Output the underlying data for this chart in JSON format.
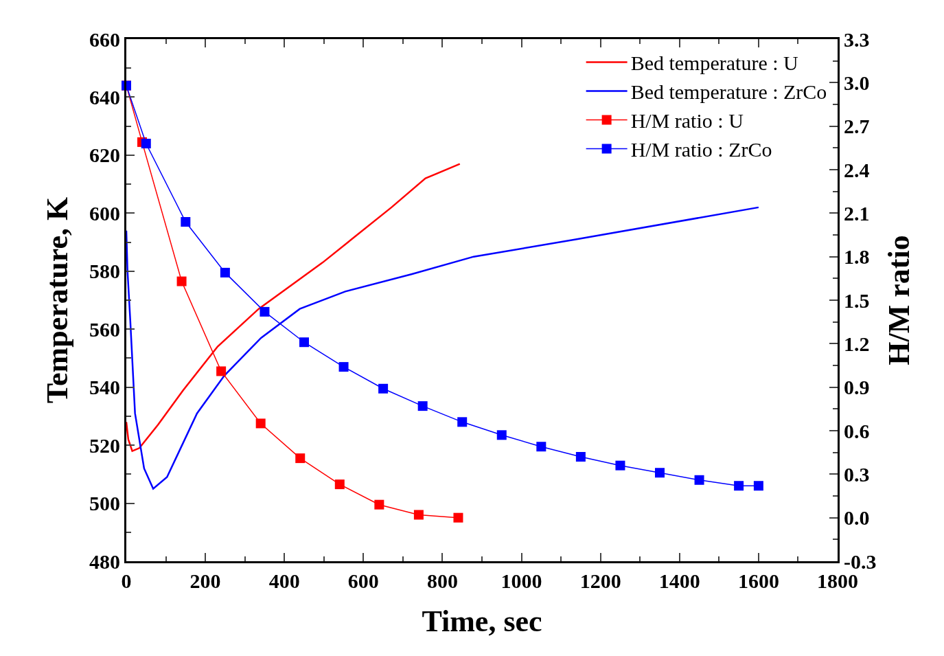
{
  "chart_data": {
    "type": "line",
    "xlabel": "Time, sec",
    "ylabel": "Temperature, K",
    "y2label": "H/M ratio",
    "xlim": [
      0,
      1800
    ],
    "xticks": [
      0,
      200,
      400,
      600,
      800,
      1000,
      1200,
      1400,
      1600,
      1800
    ],
    "ylim": [
      480,
      660
    ],
    "yticks": [
      480,
      500,
      520,
      540,
      560,
      580,
      600,
      620,
      640,
      660
    ],
    "y2lim": [
      -0.3,
      3.3
    ],
    "y2ticks": [
      -0.3,
      {
        "value": 0,
        "label": "0.0"
      },
      0.3,
      0.6,
      0.9,
      1.2,
      1.5,
      1.8,
      2.1,
      2.4,
      2.7,
      {
        "value": 3,
        "label": "3.0"
      },
      3.3
    ],
    "legend": "top right",
    "grid": false,
    "line_style": "solid",
    "series": [
      {
        "name": "Bed temperature : U",
        "color": "#ff0000",
        "marker": "none",
        "x": [
          0,
          5,
          15,
          33,
          80,
          144,
          231,
          335,
          497,
          671,
          757,
          844
        ],
        "values": [
          528,
          522,
          518,
          519,
          527,
          539,
          554,
          567,
          583,
          602,
          612,
          617
        ]
      },
      {
        "name": "Bed temperature : ZrCo",
        "color": "#0000ff",
        "marker": "none",
        "x": [
          0,
          3,
          10,
          22,
          45,
          68,
          103,
          179,
          248,
          341,
          439,
          554,
          723,
          879,
          1140,
          1600
        ],
        "values": [
          594,
          580,
          563,
          531,
          512,
          505,
          509,
          531,
          544,
          557,
          567,
          573,
          579,
          585,
          591,
          602
        ]
      },
      {
        "name": "H/M ratio : U",
        "color": "#ff0000",
        "marker": "square",
        "axis": "y2",
        "x": [
          0,
          40,
          140,
          240,
          340,
          440,
          540,
          640,
          740,
          840
        ],
        "values": [
          2.98,
          2.59,
          1.63,
          1.01,
          0.65,
          0.41,
          0.23,
          0.09,
          0.02,
          0.0
        ]
      },
      {
        "name": "H/M ratio : ZrCo",
        "color": "#0000ff",
        "marker": "square",
        "axis": "y2",
        "x": [
          0,
          50,
          150,
          250,
          350,
          450,
          550,
          650,
          750,
          850,
          950,
          1050,
          1150,
          1250,
          1350,
          1450,
          1550,
          1600
        ],
        "values": [
          2.98,
          2.58,
          2.04,
          1.69,
          1.42,
          1.21,
          1.04,
          0.89,
          0.77,
          0.66,
          0.57,
          0.49,
          0.42,
          0.36,
          0.31,
          0.26,
          0.22,
          0.22
        ]
      }
    ]
  }
}
